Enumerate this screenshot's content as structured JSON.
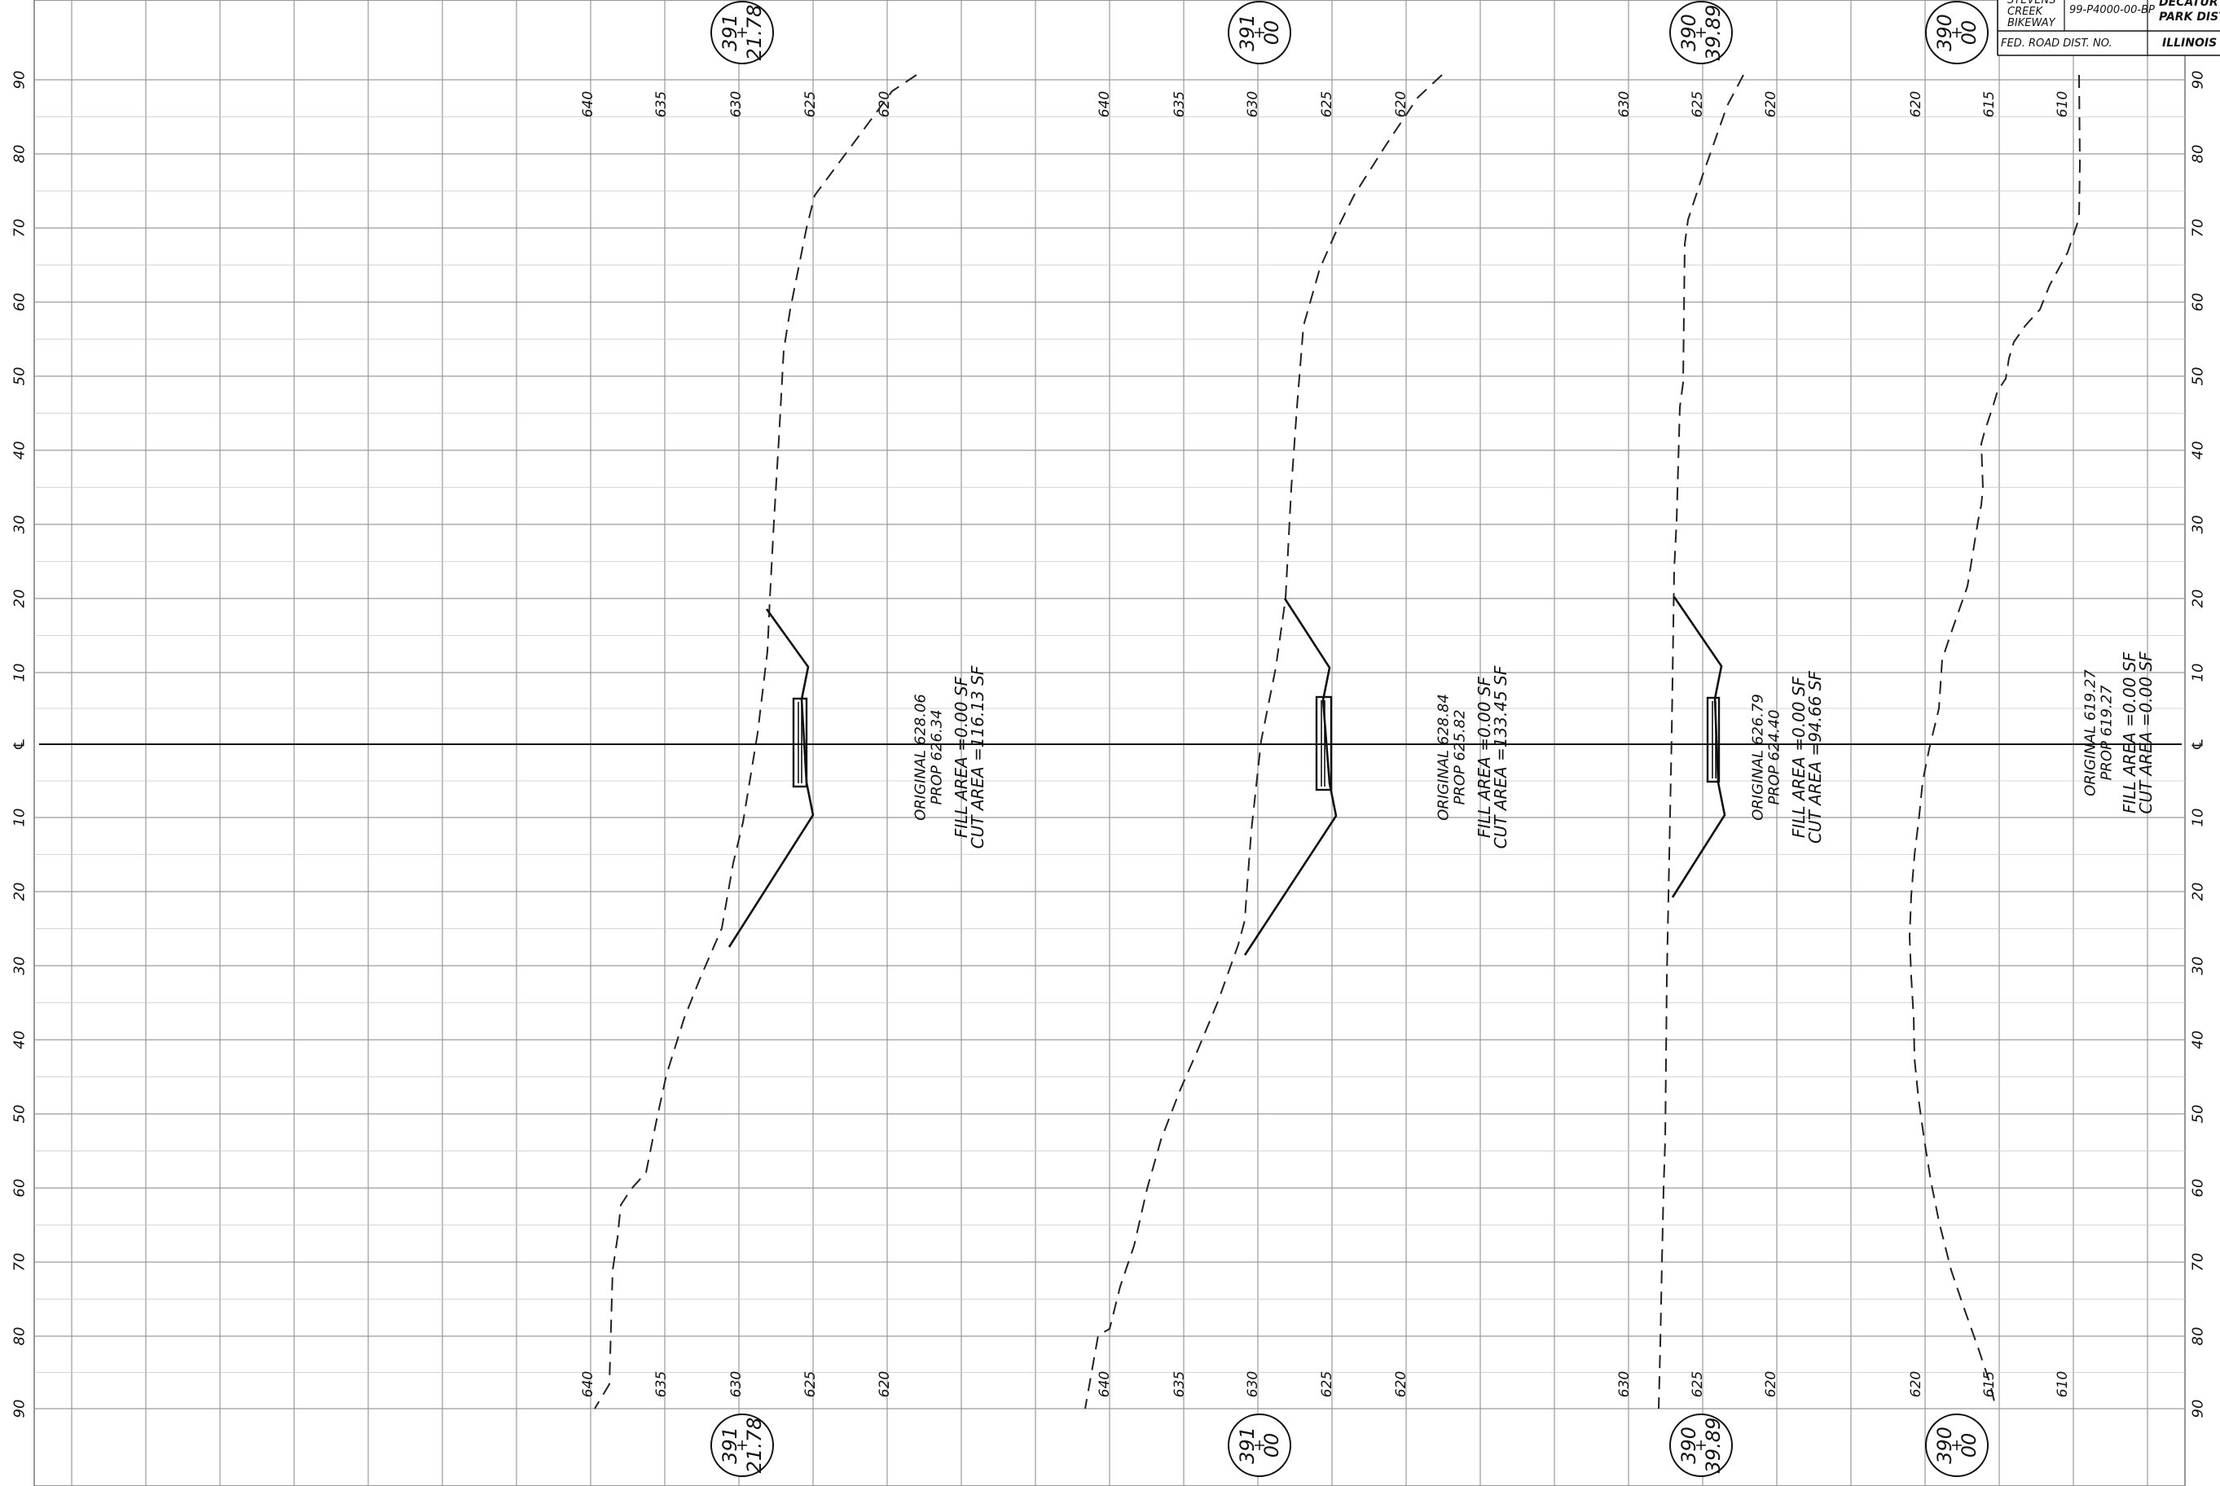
{
  "title_block": {
    "project": [
      "STEVENS",
      "CREEK",
      "BIKEWAY"
    ],
    "contract_no": "99-P4000-00-BP",
    "agency": [
      "DECATUR",
      "PARK DIST"
    ],
    "fed_road": "FED. ROAD DIST. NO.",
    "state": "ILLINOIS"
  },
  "offset_labels": [
    "90",
    "80",
    "70",
    "60",
    "50",
    "40",
    "30",
    "20",
    "10",
    "℄",
    "10",
    "20",
    "30",
    "40",
    "50",
    "60",
    "70",
    "80",
    "90"
  ],
  "sections": [
    {
      "station": [
        "391",
        "21.78"
      ],
      "elevations": [
        "640",
        "635",
        "630",
        "625",
        "620"
      ],
      "original_label": "ORIGINAL 628.06",
      "prop_label": "PROP 626.34",
      "fill_label": "FILL AREA =0.00 SF",
      "cut_label": "CUT AREA =116.13 SF"
    },
    {
      "station": [
        "391",
        "00"
      ],
      "elevations": [
        "640",
        "635",
        "630",
        "625",
        "620"
      ],
      "original_label": "ORIGINAL 628.84",
      "prop_label": "PROP 625.82",
      "fill_label": "FILL AREA =0.00 SF",
      "cut_label": "CUT AREA =133.45 SF"
    },
    {
      "station": [
        "390",
        "39.89"
      ],
      "elevations": [
        "630",
        "625",
        "620"
      ],
      "original_label": "ORIGINAL 626.79",
      "prop_label": "PROP 624.40",
      "fill_label": "FILL AREA =0.00 SF",
      "cut_label": "CUT AREA =94.66 SF"
    },
    {
      "station": [
        "390",
        "00"
      ],
      "elevations": [
        "620",
        "615",
        "610"
      ],
      "original_label": "ORIGINAL 619.27",
      "prop_label": "PROP 619.27",
      "fill_label": "FILL AREA =0.00 SF",
      "cut_label": "CUT AREA =0.00 SF"
    }
  ]
}
